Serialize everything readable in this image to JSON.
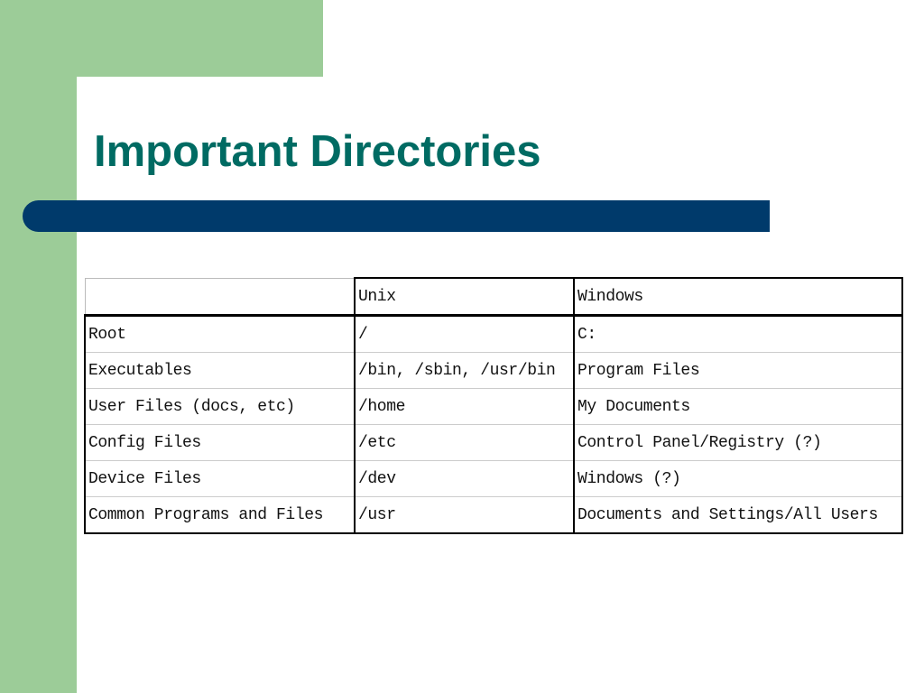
{
  "slide": {
    "title": "Important Directories",
    "colors": {
      "title": "#006b63",
      "bar": "#003a6b",
      "background_accent": "#9ccc98"
    }
  },
  "table": {
    "headers": [
      "",
      "Unix",
      "Windows"
    ],
    "rows": [
      [
        "Root",
        "/",
        "C:"
      ],
      [
        "Executables",
        "/bin, /sbin, /usr/bin",
        "Program Files"
      ],
      [
        "User Files (docs, etc)",
        "/home",
        "My Documents"
      ],
      [
        "Config Files",
        "/etc",
        "Control Panel/Registry (?)"
      ],
      [
        "Device Files",
        "/dev",
        "Windows (?)"
      ],
      [
        "Common Programs and Files",
        "/usr",
        "Documents and Settings/All Users"
      ]
    ]
  }
}
